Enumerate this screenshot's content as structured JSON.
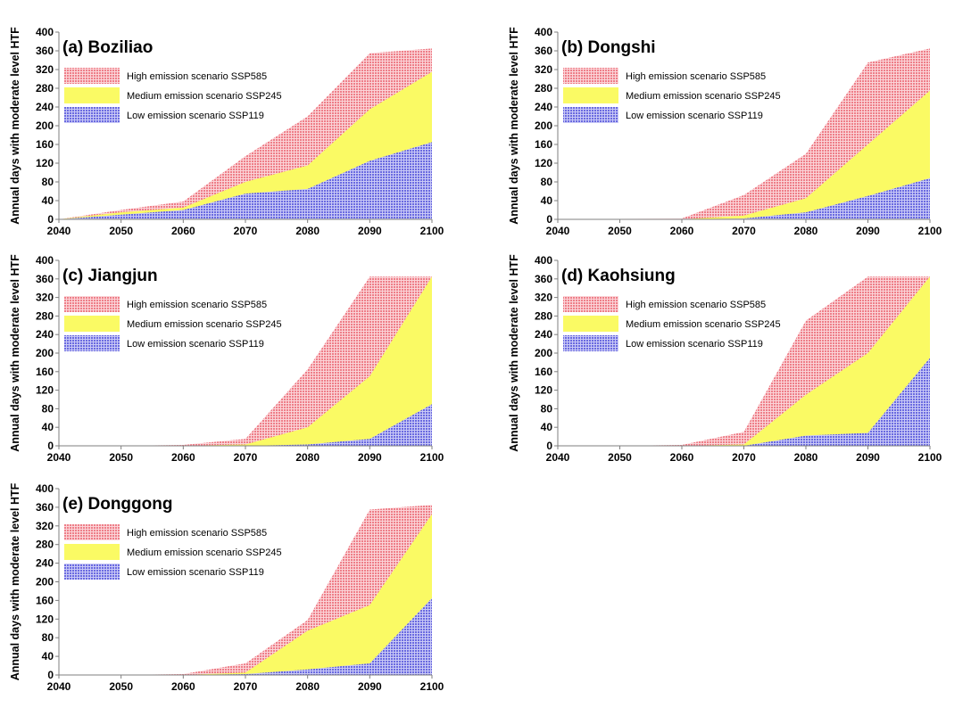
{
  "colors": {
    "high": "#f08c94",
    "medium": "#fafa64",
    "low": "#7c7ce6",
    "axis": "#7f7f7f"
  },
  "chart_data": [
    {
      "type": "area",
      "title": "(a) Boziliao",
      "ylabel": "Annual days with moderate level HTF",
      "xlabel": "",
      "x": [
        2040,
        2050,
        2060,
        2070,
        2080,
        2090,
        2100
      ],
      "xticks": [
        "2040",
        "2050",
        "2060",
        "2070",
        "2080",
        "2090",
        "2100"
      ],
      "yticks": [
        "0",
        "40",
        "80",
        "120",
        "160",
        "200",
        "240",
        "280",
        "320",
        "360",
        "400"
      ],
      "ylim": [
        0,
        400
      ],
      "legend_position": "top-left",
      "series": [
        {
          "name": "High emission scenario SSP585",
          "values": [
            0,
            20,
            38,
            135,
            220,
            355,
            365
          ]
        },
        {
          "name": "Medium emission scenario SSP245",
          "values": [
            0,
            15,
            25,
            80,
            115,
            235,
            315
          ]
        },
        {
          "name": "Low emission scenario SSP119",
          "values": [
            0,
            10,
            20,
            55,
            65,
            125,
            165
          ]
        }
      ]
    },
    {
      "type": "area",
      "title": "(b) Dongshi",
      "ylabel": "Annual days with moderate level HTF",
      "xlabel": "",
      "x": [
        2040,
        2050,
        2060,
        2070,
        2080,
        2090,
        2100
      ],
      "xticks": [
        "2040",
        "2050",
        "2060",
        "2070",
        "2080",
        "2090",
        "2100"
      ],
      "yticks": [
        "0",
        "40",
        "80",
        "120",
        "160",
        "200",
        "240",
        "280",
        "320",
        "360",
        "400"
      ],
      "ylim": [
        0,
        400
      ],
      "legend_position": "top-left",
      "series": [
        {
          "name": "High emission scenario SSP585",
          "values": [
            0,
            1,
            2,
            52,
            140,
            335,
            365
          ]
        },
        {
          "name": "Medium emission scenario SSP245",
          "values": [
            0,
            0,
            0,
            8,
            45,
            160,
            275
          ]
        },
        {
          "name": "Low emission scenario SSP119",
          "values": [
            0,
            0,
            0,
            2,
            15,
            50,
            88
          ]
        }
      ]
    },
    {
      "type": "area",
      "title": "(c) Jiangjun",
      "ylabel": "Annual days with moderate level HTF",
      "xlabel": "",
      "x": [
        2040,
        2050,
        2060,
        2070,
        2080,
        2090,
        2100
      ],
      "xticks": [
        "2040",
        "2050",
        "2060",
        "2070",
        "2080",
        "2090",
        "2100"
      ],
      "yticks": [
        "0",
        "40",
        "80",
        "120",
        "160",
        "200",
        "240",
        "280",
        "320",
        "360",
        "400"
      ],
      "ylim": [
        0,
        400
      ],
      "legend_position": "top-left",
      "series": [
        {
          "name": "High emission scenario SSP585",
          "values": [
            0,
            0,
            2,
            15,
            165,
            365,
            365
          ]
        },
        {
          "name": "Medium emission scenario SSP245",
          "values": [
            0,
            0,
            0,
            3,
            40,
            150,
            365
          ]
        },
        {
          "name": "Low emission scenario SSP119",
          "values": [
            0,
            0,
            0,
            0,
            3,
            15,
            90
          ]
        }
      ]
    },
    {
      "type": "area",
      "title": "(d) Kaohsiung",
      "ylabel": "Annual days with moderate level HTF",
      "xlabel": "",
      "x": [
        2040,
        2050,
        2060,
        2070,
        2080,
        2090,
        2100
      ],
      "xticks": [
        "2040",
        "2050",
        "2060",
        "2070",
        "2080",
        "2090",
        "2100"
      ],
      "yticks": [
        "0",
        "40",
        "80",
        "120",
        "160",
        "200",
        "240",
        "280",
        "320",
        "360",
        "400"
      ],
      "ylim": [
        0,
        400
      ],
      "legend_position": "top-left",
      "series": [
        {
          "name": "High emission scenario SSP585",
          "values": [
            0,
            0,
            2,
            30,
            270,
            365,
            365
          ]
        },
        {
          "name": "Medium emission scenario SSP245",
          "values": [
            0,
            0,
            0,
            3,
            110,
            200,
            365
          ]
        },
        {
          "name": "Low emission scenario SSP119",
          "values": [
            0,
            0,
            0,
            0,
            22,
            28,
            190
          ]
        }
      ]
    },
    {
      "type": "area",
      "title": "(e) Donggong",
      "ylabel": "Annual days with moderate level HTF",
      "xlabel": "",
      "x": [
        2040,
        2050,
        2060,
        2070,
        2080,
        2090,
        2100
      ],
      "xticks": [
        "2040",
        "2050",
        "2060",
        "2070",
        "2080",
        "2090",
        "2100"
      ],
      "yticks": [
        "0",
        "40",
        "80",
        "120",
        "160",
        "200",
        "240",
        "280",
        "320",
        "360",
        "400"
      ],
      "ylim": [
        0,
        400
      ],
      "legend_position": "top-left",
      "series": [
        {
          "name": "High emission scenario SSP585",
          "values": [
            0,
            0,
            2,
            25,
            118,
            355,
            365
          ]
        },
        {
          "name": "Medium emission scenario SSP245",
          "values": [
            0,
            0,
            0,
            5,
            95,
            150,
            345
          ]
        },
        {
          "name": "Low emission scenario SSP119",
          "values": [
            0,
            0,
            0,
            2,
            12,
            25,
            165
          ]
        }
      ]
    }
  ]
}
